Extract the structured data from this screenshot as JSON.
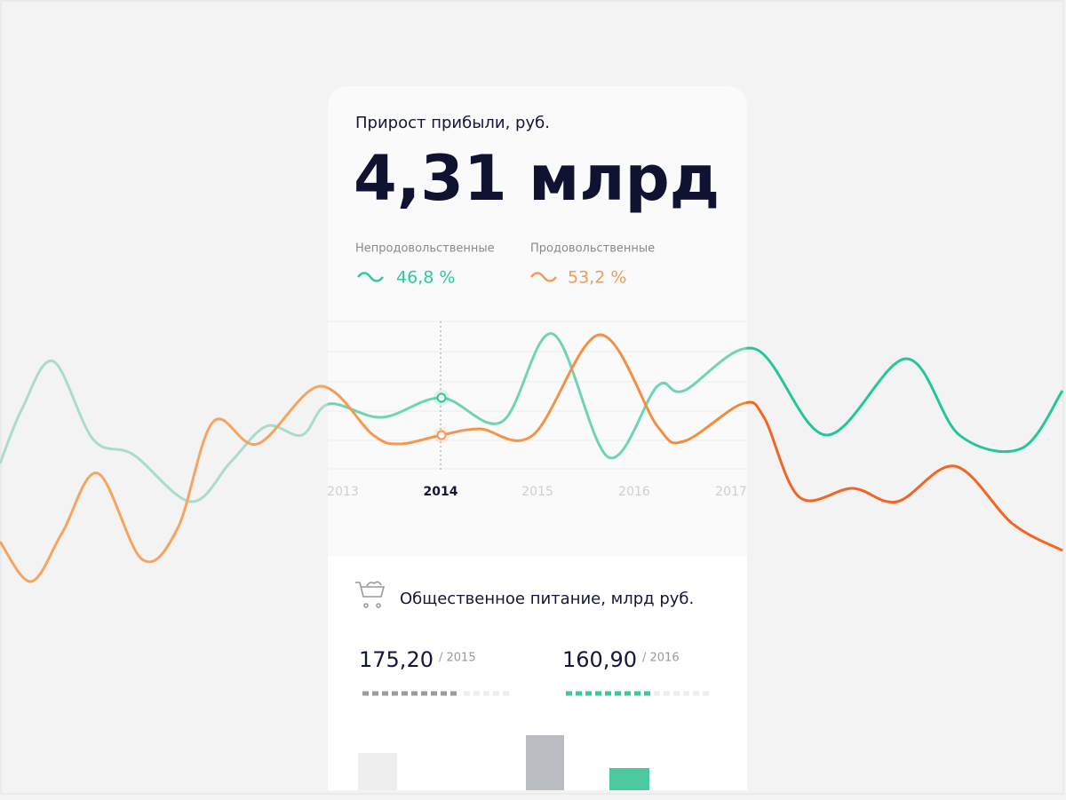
{
  "header": {
    "title": "Прирост прибыли, руб.",
    "value": "4,31 млрд"
  },
  "legend": [
    {
      "name": "Непродовольственные",
      "value": "46,8 %"
    },
    {
      "name": "Продовольственные",
      "value": "53,2 %"
    }
  ],
  "axis": {
    "labels": [
      "2013",
      "2014",
      "2015",
      "2016",
      "2017"
    ]
  },
  "section": {
    "title": "Общественное питание, млрд руб.",
    "stats": [
      {
        "value": "175,20",
        "year": "/ 2015"
      },
      {
        "value": "160,90",
        "year": "/ 2016"
      }
    ]
  }
}
